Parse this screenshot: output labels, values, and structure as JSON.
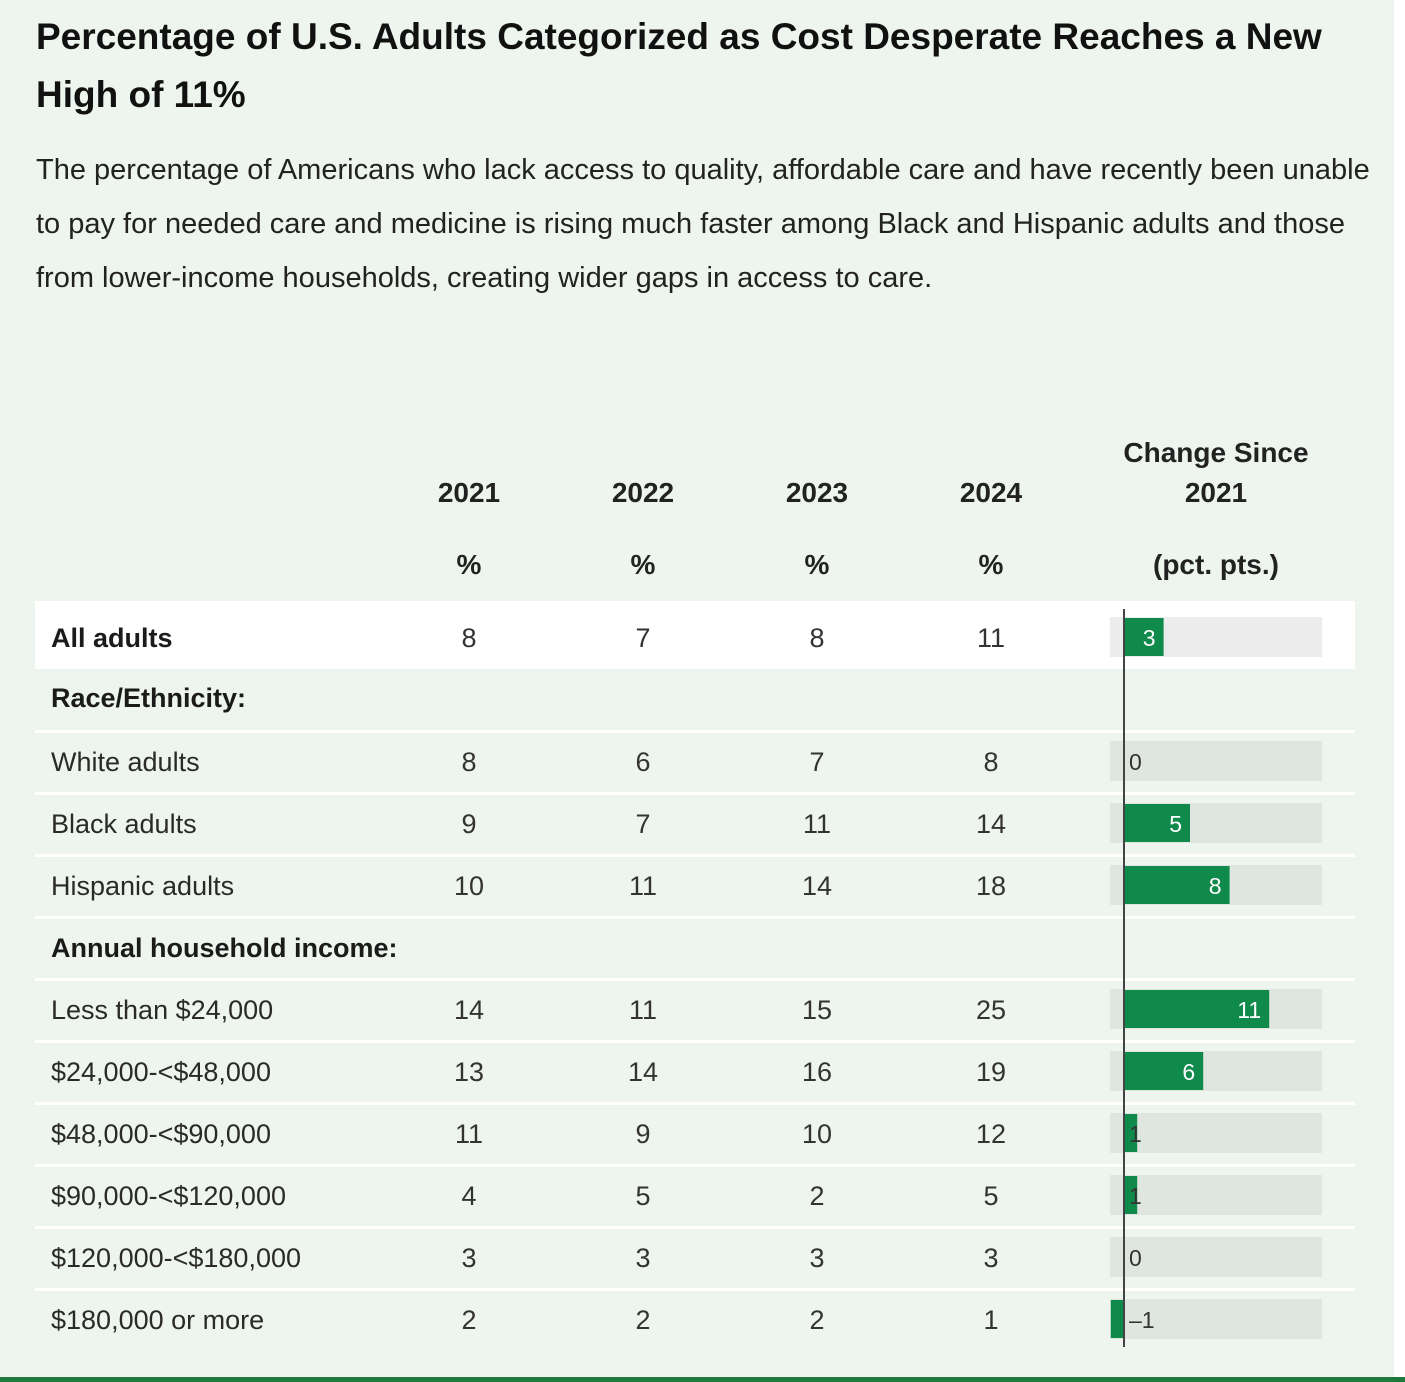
{
  "title": "Percentage of U.S. Adults Categorized as Cost Desperate Reaches a New High of 11%",
  "subtitle": "The percentage of Americans who lack access to quality, affordable care and have recently been unable to pay for needed care and medicine is rising much faster among Black and Hispanic adults and those from lower-income households, creating wider gaps in access to care.",
  "chart_data": {
    "type": "table",
    "columns": [
      {
        "year": "2021",
        "unit": "%"
      },
      {
        "year": "2022",
        "unit": "%"
      },
      {
        "year": "2023",
        "unit": "%"
      },
      {
        "year": "2024",
        "unit": "%"
      }
    ],
    "change_column": {
      "line1": "Change Since",
      "line2": "2021",
      "unit": "(pct. pts.)"
    },
    "rows": [
      {
        "label": "All adults",
        "values": [
          8,
          7,
          8,
          11
        ],
        "change": 3,
        "change_label": "3",
        "highlight": true
      },
      {
        "label": "Race/Ethnicity:",
        "group_header": true
      },
      {
        "label": "White adults",
        "values": [
          8,
          6,
          7,
          8
        ],
        "change": 0,
        "change_label": "0"
      },
      {
        "label": "Black adults",
        "values": [
          9,
          7,
          11,
          14
        ],
        "change": 5,
        "change_label": "5"
      },
      {
        "label": "Hispanic adults",
        "values": [
          10,
          11,
          14,
          18
        ],
        "change": 8,
        "change_label": "8"
      },
      {
        "label": "Annual household income:",
        "group_header": true
      },
      {
        "label": "Less than $24,000",
        "values": [
          14,
          11,
          15,
          25
        ],
        "change": 11,
        "change_label": "11"
      },
      {
        "label": "$24,000-<$48,000",
        "values": [
          13,
          14,
          16,
          19
        ],
        "change": 6,
        "change_label": "6"
      },
      {
        "label": "$48,000-<$90,000",
        "values": [
          11,
          9,
          10,
          12
        ],
        "change": 1,
        "change_label": "1"
      },
      {
        "label": "$90,000-<$120,000",
        "values": [
          4,
          5,
          2,
          5
        ],
        "change": 1,
        "change_label": "1"
      },
      {
        "label": "$120,000-<$180,000",
        "values": [
          3,
          3,
          3,
          3
        ],
        "change": 0,
        "change_label": "0"
      },
      {
        "label": "$180,000 or more",
        "values": [
          2,
          2,
          2,
          1
        ],
        "change": -1,
        "change_label": "–1"
      }
    ],
    "change_range": [
      -1,
      15
    ]
  },
  "colors": {
    "background": "#eef5ee",
    "bar": "#0f8a4a",
    "bar_track": "#dfe5df",
    "bar_track_highlight": "#ececec",
    "axis": "#444444",
    "rule": "#1e7a3c"
  }
}
